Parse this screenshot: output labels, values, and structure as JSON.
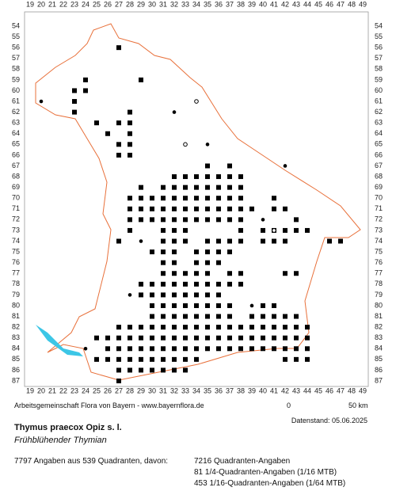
{
  "grid": {
    "columns": [
      19,
      20,
      21,
      22,
      23,
      24,
      25,
      26,
      27,
      28,
      29,
      30,
      31,
      32,
      33,
      34,
      35,
      36,
      37,
      38,
      39,
      40,
      41,
      42,
      43,
      44,
      45,
      46,
      47,
      48,
      49
    ],
    "rows": [
      54,
      55,
      56,
      57,
      58,
      59,
      60,
      61,
      62,
      63,
      64,
      65,
      66,
      67,
      68,
      69,
      70,
      71,
      72,
      73,
      74,
      75,
      76,
      77,
      78,
      79,
      80,
      81,
      82,
      83,
      84,
      85,
      86,
      87
    ]
  },
  "squares": [
    [
      56,
      27,
      27
    ],
    [
      59,
      24,
      24
    ],
    [
      59,
      29,
      29
    ],
    [
      60,
      23,
      24
    ],
    [
      61,
      23,
      23
    ],
    [
      62,
      23,
      23
    ],
    [
      62,
      28,
      28
    ],
    [
      63,
      25,
      25
    ],
    [
      63,
      27,
      28
    ],
    [
      64,
      26,
      26
    ],
    [
      64,
      28,
      28
    ],
    [
      65,
      27,
      28
    ],
    [
      66,
      27,
      28
    ],
    [
      67,
      35,
      35
    ],
    [
      67,
      37,
      37
    ],
    [
      68,
      32,
      38
    ],
    [
      69,
      29,
      29
    ],
    [
      69,
      31,
      38
    ],
    [
      70,
      28,
      38
    ],
    [
      70,
      41,
      41
    ],
    [
      71,
      28,
      39
    ],
    [
      71,
      41,
      42
    ],
    [
      72,
      28,
      38
    ],
    [
      72,
      43,
      43
    ],
    [
      73,
      28,
      28
    ],
    [
      73,
      31,
      33
    ],
    [
      73,
      38,
      38
    ],
    [
      73,
      40,
      44
    ],
    [
      74,
      27,
      27
    ],
    [
      74,
      31,
      33
    ],
    [
      74,
      35,
      38
    ],
    [
      74,
      40,
      42
    ],
    [
      74,
      46,
      47
    ],
    [
      75,
      30,
      32
    ],
    [
      75,
      34,
      37
    ],
    [
      76,
      31,
      32
    ],
    [
      76,
      34,
      36
    ],
    [
      77,
      31,
      35
    ],
    [
      77,
      37,
      38
    ],
    [
      77,
      42,
      43
    ],
    [
      78,
      29,
      38
    ],
    [
      79,
      29,
      36
    ],
    [
      80,
      30,
      37
    ],
    [
      80,
      40,
      41
    ],
    [
      81,
      30,
      37
    ],
    [
      81,
      39,
      43
    ],
    [
      82,
      27,
      44
    ],
    [
      83,
      25,
      44
    ],
    [
      84,
      26,
      44
    ],
    [
      85,
      25,
      34
    ],
    [
      85,
      42,
      44
    ],
    [
      86,
      27,
      33
    ],
    [
      87,
      27,
      27
    ]
  ],
  "dots": [
    [
      20,
      61
    ],
    [
      32,
      62
    ],
    [
      35,
      65
    ],
    [
      42,
      67
    ],
    [
      40,
      72
    ],
    [
      29,
      74
    ],
    [
      28,
      79
    ],
    [
      39,
      80
    ],
    [
      24,
      84
    ]
  ],
  "open_circles": [
    [
      34,
      61
    ],
    [
      33,
      65
    ],
    [
      41,
      73
    ]
  ],
  "footer": {
    "credit": "Arbeitsgemeinschaft Flora von Bayern - www.bayernflora.de",
    "scale_start": "0",
    "scale_end": "50 km",
    "date": "Datenstand: 05.06.2025"
  },
  "species": {
    "scientific": "Thymus praecox Opiz s. l.",
    "common": "Frühblühender Thymian"
  },
  "stats": {
    "summary": "7797 Angaben aus 539 Quadranten, davon:",
    "quadrant": "7216 Quadranten-Angaben",
    "quarter": "81 1/4-Quadranten-Angaben (1/16 MTB)",
    "sixteenth": "453 1/16-Quadranten-Angaben (1/64 MTB)"
  }
}
